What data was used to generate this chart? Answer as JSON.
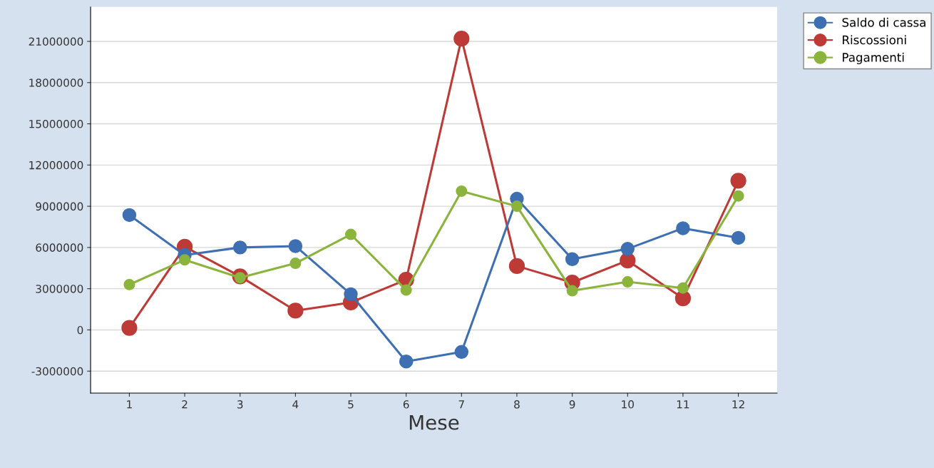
{
  "chart_data": {
    "type": "line",
    "xlabel": "Mese",
    "categories": [
      "1",
      "2",
      "3",
      "4",
      "5",
      "6",
      "7",
      "8",
      "9",
      "10",
      "11",
      "12"
    ],
    "series": [
      {
        "name": "Saldo di cassa",
        "color": "#3e6fb3",
        "values": [
          8360000,
          5450000,
          6000000,
          6100000,
          2600000,
          -2300000,
          -1600000,
          9550000,
          5150000,
          5900000,
          7400000,
          6700000
        ]
      },
      {
        "name": "Riscossioni",
        "color": "#be3a36",
        "values": [
          150000,
          6050000,
          3900000,
          1400000,
          2000000,
          3650000,
          21200000,
          4650000,
          3450000,
          5050000,
          2300000,
          10850000
        ]
      },
      {
        "name": "Pagamenti",
        "color": "#8bb43c",
        "values": [
          3300000,
          5100000,
          3800000,
          4850000,
          6950000,
          2900000,
          10100000,
          9000000,
          2850000,
          3500000,
          3050000,
          9750000
        ]
      }
    ],
    "ylim": [
      -4600000,
      23500000
    ],
    "yticks": [
      -3000000,
      0,
      3000000,
      6000000,
      9000000,
      12000000,
      15000000,
      18000000,
      21000000
    ],
    "grid": "y",
    "legend": "top right",
    "marker": "circle",
    "line_style": "solid"
  }
}
